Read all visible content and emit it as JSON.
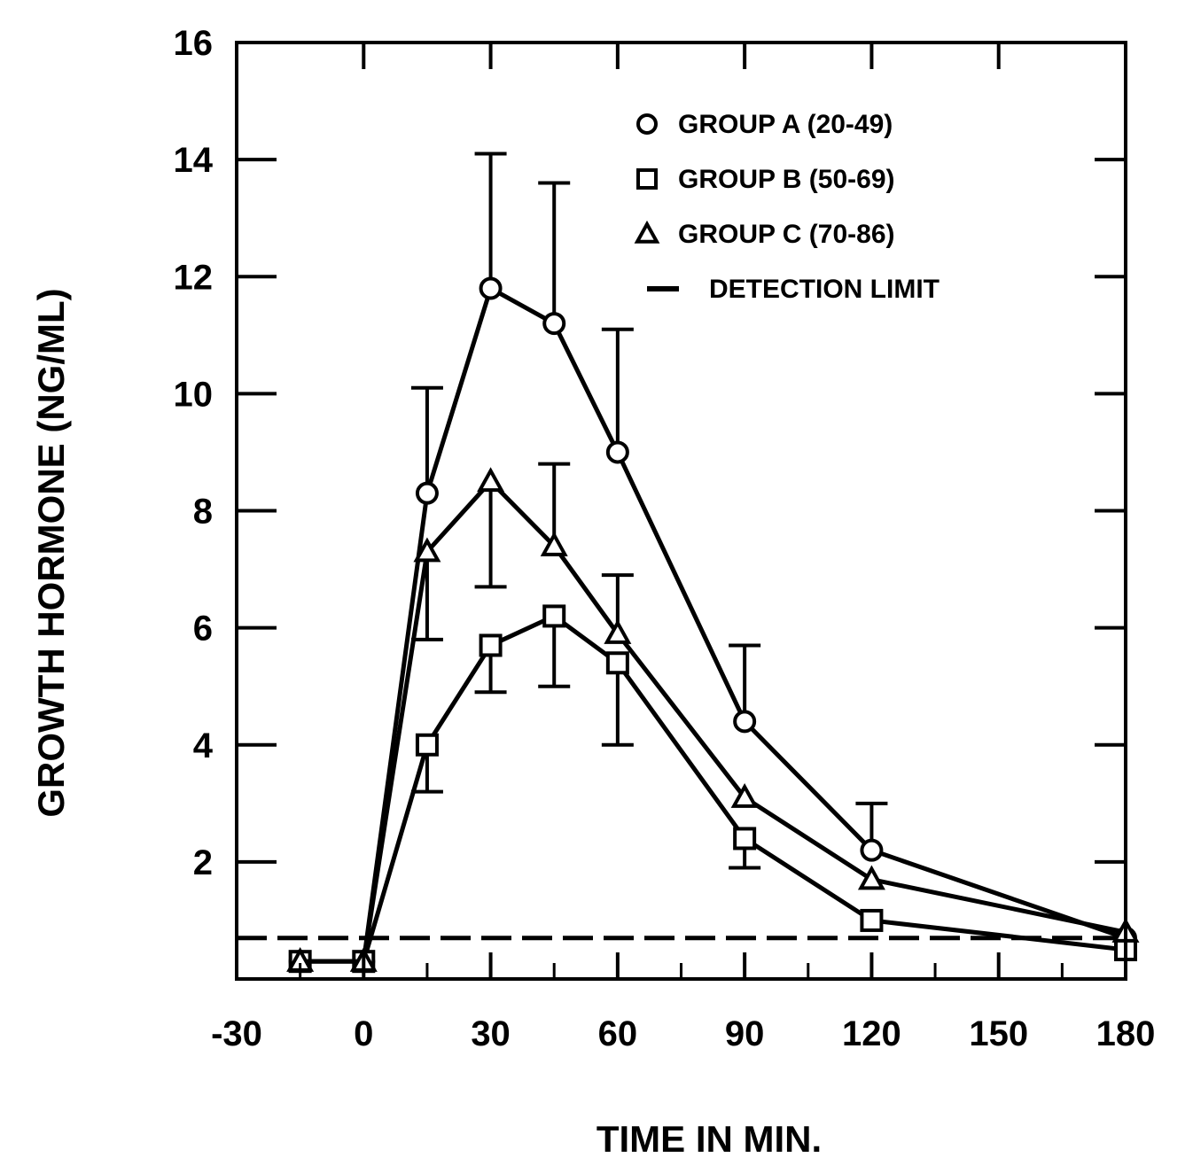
{
  "chart_data": {
    "type": "line",
    "xlabel": "TIME IN MIN.",
    "ylabel": "GROWTH HORMONE (NG/ML)",
    "xlim": [
      -30,
      180
    ],
    "ylim": [
      0,
      16
    ],
    "x_ticks": [
      -30,
      0,
      30,
      60,
      90,
      120,
      150,
      180
    ],
    "y_ticks": [
      2,
      4,
      6,
      8,
      10,
      12,
      14,
      16
    ],
    "grid": false,
    "legend_position": "top-right",
    "series": [
      {
        "name": "GROUP A (20-49)",
        "marker": "circle",
        "x": [
          -15,
          0,
          15,
          30,
          45,
          60,
          90,
          120,
          180
        ],
        "y": [
          0.3,
          0.3,
          8.3,
          11.8,
          11.2,
          9.0,
          4.4,
          2.2,
          0.7
        ],
        "error_upper": [
          null,
          null,
          10.1,
          14.1,
          13.6,
          11.1,
          5.7,
          3.0,
          null
        ]
      },
      {
        "name": "GROUP B (50-69)",
        "marker": "square",
        "x": [
          -15,
          0,
          15,
          30,
          45,
          60,
          90,
          120,
          180
        ],
        "y": [
          0.3,
          0.3,
          4.0,
          5.7,
          6.2,
          5.4,
          2.4,
          1.0,
          0.5
        ],
        "error_lower": [
          null,
          null,
          3.2,
          4.9,
          5.0,
          4.0,
          1.9,
          null,
          null
        ]
      },
      {
        "name": "GROUP C (70-86)",
        "marker": "triangle",
        "x": [
          -15,
          0,
          15,
          30,
          45,
          60,
          90,
          120,
          180
        ],
        "y": [
          0.3,
          0.3,
          7.3,
          8.5,
          7.4,
          5.9,
          3.1,
          1.7,
          0.8
        ],
        "error_upper": [
          null,
          null,
          null,
          null,
          8.8,
          6.9,
          null,
          null,
          null
        ],
        "error_lower": [
          null,
          null,
          5.8,
          6.7,
          null,
          null,
          null,
          null,
          null
        ]
      }
    ],
    "reference_lines": [
      {
        "name": "DETECTION LIMIT",
        "style": "dashed",
        "y": 0.7
      }
    ]
  }
}
